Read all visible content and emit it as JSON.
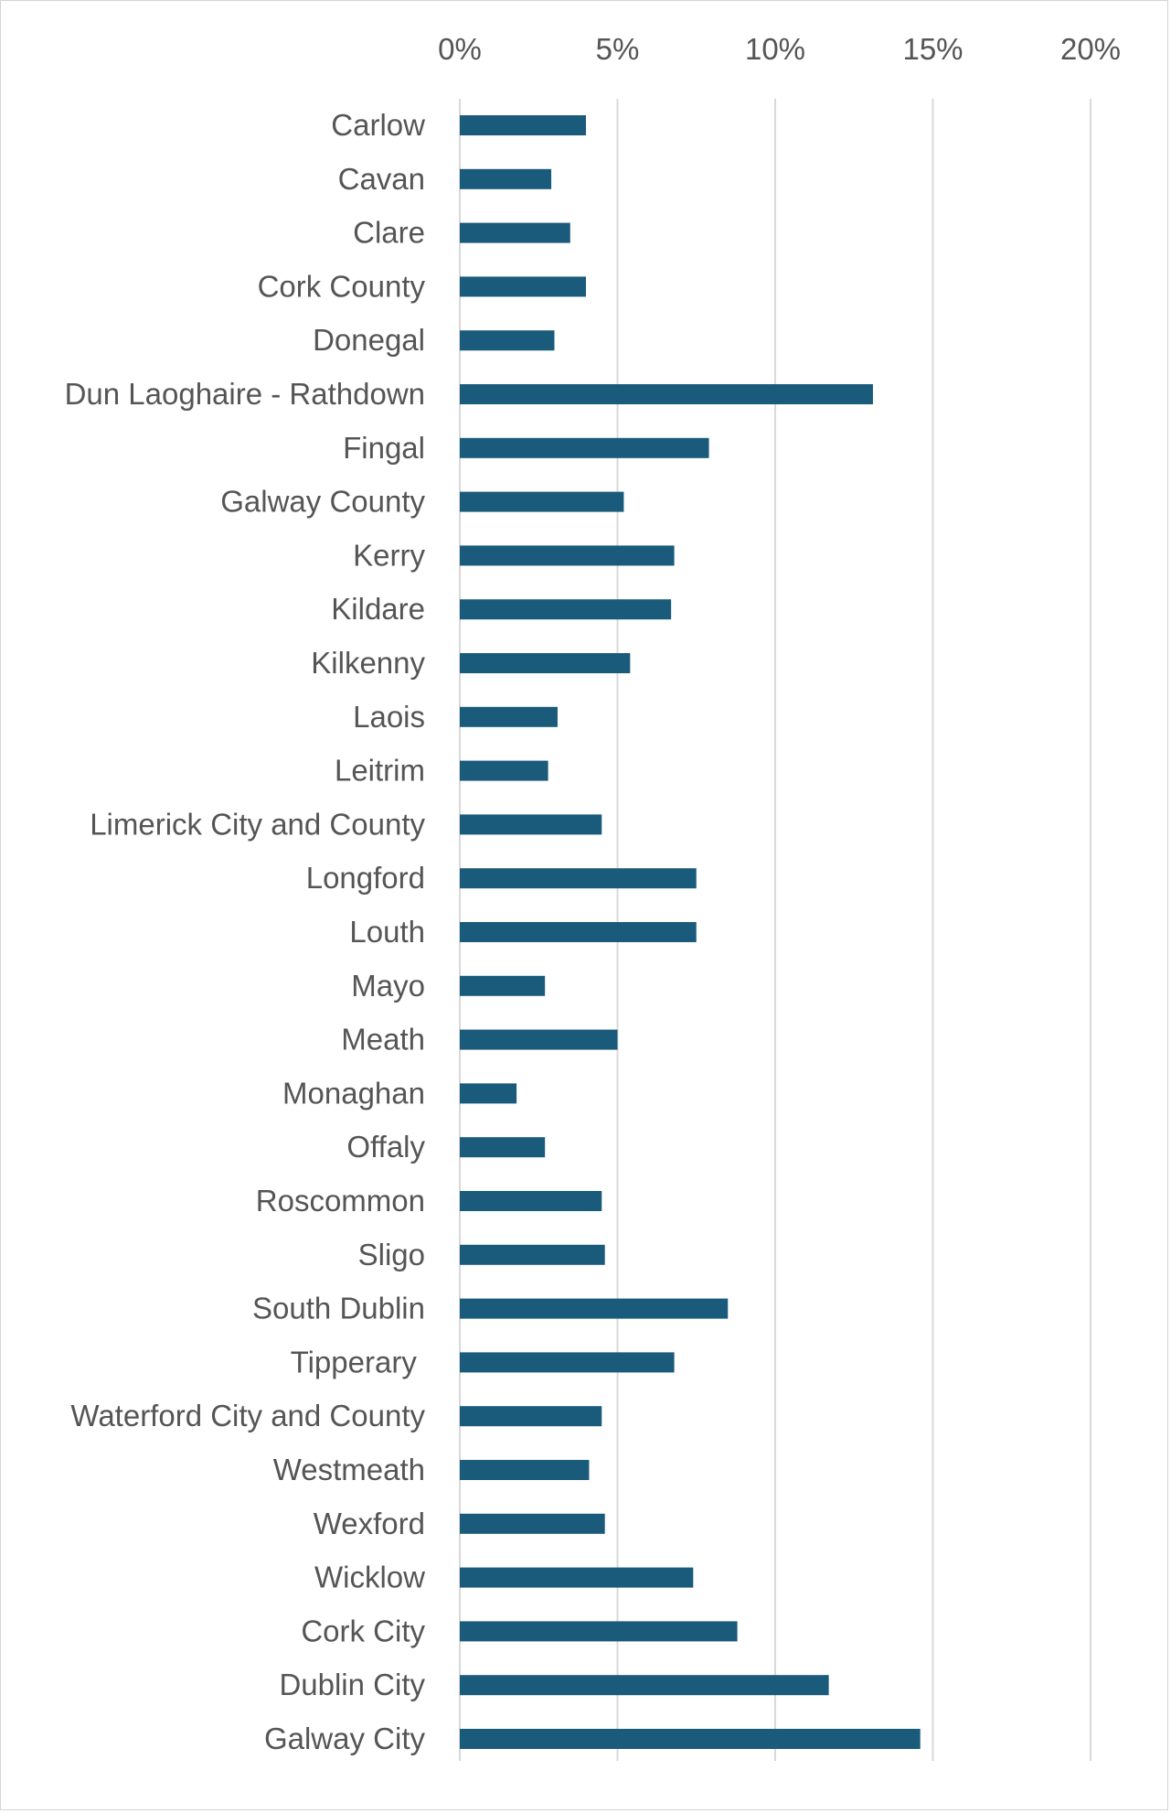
{
  "chart_data": {
    "type": "bar",
    "orientation": "horizontal",
    "title": "",
    "xlabel": "",
    "ylabel": "",
    "xlim": [
      0,
      20
    ],
    "x_ticks": [
      0,
      5,
      10,
      15,
      20
    ],
    "x_tick_labels": [
      "0%",
      "5%",
      "10%",
      "15%",
      "20%"
    ],
    "x_axis_position": "top",
    "grid": true,
    "bar_color": "#1a5a7a",
    "grid_color": "#d9d9d9",
    "categories": [
      "Carlow",
      "Cavan",
      "Clare",
      "Cork County",
      "Donegal",
      "Dun Laoghaire - Rathdown",
      "Fingal",
      "Galway County",
      "Kerry",
      "Kildare",
      "Kilkenny",
      "Laois",
      "Leitrim",
      "Limerick City and County",
      "Longford",
      "Louth",
      "Mayo",
      "Meath",
      "Monaghan",
      "Offaly",
      "Roscommon",
      "Sligo",
      "South Dublin",
      "Tipperary ",
      "Waterford City and County",
      "Westmeath",
      "Wexford",
      "Wicklow",
      "Cork City",
      "Dublin City",
      "Galway City"
    ],
    "values": [
      4.0,
      2.9,
      3.5,
      4.0,
      3.0,
      13.1,
      7.9,
      5.2,
      6.8,
      6.7,
      5.4,
      3.1,
      2.8,
      4.5,
      7.5,
      7.5,
      2.7,
      5.0,
      1.8,
      2.7,
      4.5,
      4.6,
      8.5,
      6.8,
      4.5,
      4.1,
      4.6,
      7.4,
      8.8,
      11.7,
      14.6
    ]
  }
}
